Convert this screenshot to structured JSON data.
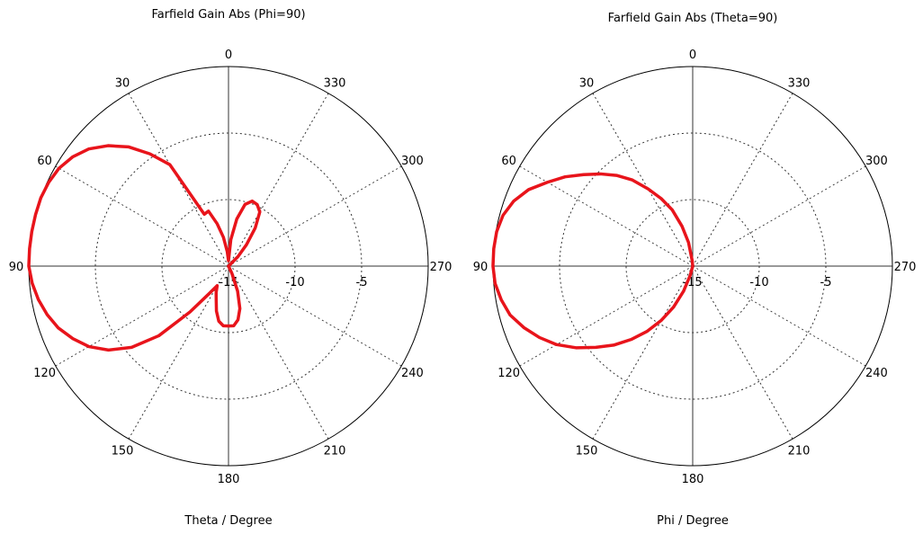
{
  "chart_data": [
    {
      "type": "polar",
      "title": "Farfield Gain Abs (Phi=90)",
      "xlabel": "Theta / Degree",
      "angle_labels": [
        "0",
        "30",
        "60",
        "90",
        "120",
        "150",
        "180",
        "210",
        "240",
        "270",
        "300",
        "330"
      ],
      "angle_ticks": [
        0,
        30,
        60,
        90,
        120,
        150,
        180,
        210,
        240,
        270,
        300,
        330
      ],
      "radial_ticks": [
        -15,
        -10,
        -5
      ],
      "radial_tick_labels": [
        "-15",
        "-10",
        "-5"
      ],
      "radial_range": [
        -15,
        0
      ],
      "grid": true,
      "line_color": "#e8141b",
      "series": [
        {
          "angles": [
            0,
            5,
            10,
            15,
            20,
            25,
            30,
            35,
            40,
            45,
            50,
            55,
            60,
            65,
            70,
            75,
            80,
            85,
            90,
            95,
            100,
            105,
            110,
            115,
            120,
            125,
            130,
            135,
            140,
            145,
            150,
            155,
            160,
            165,
            170,
            175,
            180,
            185,
            190,
            195,
            200,
            205,
            210,
            215,
            220,
            225,
            230,
            235,
            240,
            245,
            250,
            255,
            260,
            265,
            270,
            275,
            280,
            285,
            290,
            295,
            300,
            305,
            310,
            315,
            320,
            325,
            330,
            335,
            340,
            345,
            350,
            355
          ],
          "values": [
            -14.6,
            -13.9,
            -12.8,
            -11.7,
            -10.6,
            -10.7,
            -6.2,
            -4.7,
            -3.3,
            -2.2,
            -1.3,
            -0.7,
            -0.3,
            -0.1,
            0,
            0,
            0,
            0,
            0,
            -0.2,
            -0.5,
            -0.9,
            -1.4,
            -2.1,
            -2.9,
            -4.0,
            -5.5,
            -7.6,
            -10.5,
            -12.5,
            -13.3,
            -12.8,
            -12.3,
            -11.5,
            -10.8,
            -10.5,
            -10.5,
            -10.5,
            -10.9,
            -11.7,
            -13.0,
            -14.4,
            -15,
            -15,
            -15,
            -15,
            -15,
            -15,
            -15,
            -15,
            -15,
            -15,
            -15,
            -15,
            -15,
            -15,
            -15,
            -15,
            -15,
            -15,
            -15,
            -15,
            -15,
            -14.0,
            -12.9,
            -11.5,
            -10.3,
            -9.9,
            -9.8,
            -10.2,
            -11.4,
            -13.0
          ]
        }
      ]
    },
    {
      "type": "polar",
      "title": "Farfield Gain Abs (Theta=90)",
      "xlabel": "Phi / Degree",
      "angle_labels": [
        "0",
        "30",
        "60",
        "90",
        "120",
        "150",
        "180",
        "210",
        "240",
        "270",
        "300",
        "330"
      ],
      "angle_ticks": [
        0,
        30,
        60,
        90,
        120,
        150,
        180,
        210,
        240,
        270,
        300,
        330
      ],
      "radial_ticks": [
        -15,
        -10,
        -5
      ],
      "radial_tick_labels": [
        "-15",
        "-10",
        "-5"
      ],
      "radial_range": [
        -15,
        0
      ],
      "grid": true,
      "line_color": "#e8141b",
      "series": [
        {
          "angles": [
            0,
            5,
            10,
            15,
            20,
            25,
            30,
            35,
            40,
            45,
            50,
            55,
            60,
            65,
            70,
            75,
            80,
            85,
            90,
            95,
            100,
            105,
            110,
            115,
            120,
            125,
            130,
            135,
            140,
            145,
            150,
            155,
            160,
            165,
            170,
            175,
            180,
            185,
            190,
            195,
            200,
            205,
            210,
            215,
            220,
            225,
            230,
            235,
            240,
            245,
            250,
            255,
            260,
            265,
            270,
            275,
            280,
            285,
            290,
            295,
            300,
            305,
            310,
            315,
            320,
            325,
            330,
            335,
            340,
            345,
            350,
            355
          ],
          "values": [
            -15,
            -14.6,
            -13.2,
            -11.9,
            -10.5,
            -9.4,
            -8.3,
            -7.1,
            -6.1,
            -5.2,
            -4.3,
            -3.3,
            -2.4,
            -1.4,
            -0.7,
            -0.25,
            -0.05,
            0,
            0,
            -0.1,
            -0.4,
            -0.8,
            -1.5,
            -2.3,
            -3.2,
            -4.3,
            -5.5,
            -6.6,
            -7.8,
            -9.0,
            -10.3,
            -11.6,
            -13.0,
            -14.3,
            -15,
            -15,
            -15,
            -15,
            -15,
            -15,
            -15,
            -15,
            -15,
            -15,
            -15,
            -15,
            -15,
            -15,
            -15,
            -15,
            -15,
            -15,
            -15,
            -15,
            -15,
            -15,
            -15,
            -15,
            -15,
            -15,
            -15,
            -15,
            -15,
            -15,
            -15,
            -15,
            -15,
            -15,
            -15,
            -15,
            -15,
            -15
          ]
        }
      ]
    }
  ]
}
